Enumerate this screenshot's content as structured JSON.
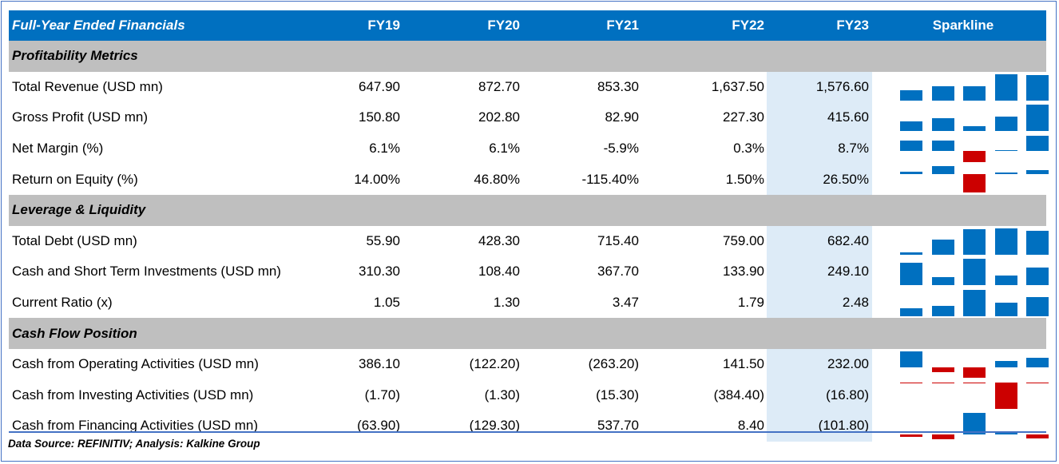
{
  "header": {
    "title": "Full-Year Ended Financials",
    "years": [
      "FY19",
      "FY20",
      "FY21",
      "FY22",
      "FY23"
    ],
    "sparkline_label": "Sparkline"
  },
  "colors": {
    "header": "#0070c0",
    "section": "#bfbfbf",
    "highlight": "#ddebf7",
    "positive": "#0070c0",
    "negative": "#cc0000"
  },
  "sections": [
    {
      "title": "Profitability Metrics",
      "rows": [
        {
          "label": "Total Revenue (USD mn)",
          "values": [
            "647.90",
            "872.70",
            "853.30",
            "1,637.50",
            "1,576.60"
          ],
          "series": [
            647.9,
            872.7,
            853.3,
            1637.5,
            1576.6
          ]
        },
        {
          "label": "Gross Profit (USD mn)",
          "values": [
            "150.80",
            "202.80",
            "82.90",
            "227.30",
            "415.60"
          ],
          "series": [
            150.8,
            202.8,
            82.9,
            227.3,
            415.6
          ]
        },
        {
          "label": "Net Margin (%)",
          "values": [
            "6.1%",
            "6.1%",
            "-5.9%",
            "0.3%",
            "8.7%"
          ],
          "series": [
            6.1,
            6.1,
            -5.9,
            0.3,
            8.7
          ]
        },
        {
          "label": "Return on Equity (%)",
          "values": [
            "14.00%",
            "46.80%",
            "-115.40%",
            "1.50%",
            "26.50%"
          ],
          "series": [
            14.0,
            46.8,
            -115.4,
            1.5,
            26.5
          ]
        }
      ]
    },
    {
      "title": "Leverage & Liquidity",
      "rows": [
        {
          "label": "Total Debt (USD mn)",
          "values": [
            "55.90",
            "428.30",
            "715.40",
            "759.00",
            "682.40"
          ],
          "series": [
            55.9,
            428.3,
            715.4,
            759.0,
            682.4
          ]
        },
        {
          "label": "Cash and Short Term Investments (USD mn)",
          "values": [
            "310.30",
            "108.40",
            "367.70",
            "133.90",
            "249.10"
          ],
          "series": [
            310.3,
            108.4,
            367.7,
            133.9,
            249.1
          ]
        },
        {
          "label": "Current Ratio (x)",
          "values": [
            "1.05",
            "1.30",
            "3.47",
            "1.79",
            "2.48"
          ],
          "series": [
            1.05,
            1.3,
            3.47,
            1.79,
            2.48
          ]
        }
      ]
    },
    {
      "title": "Cash Flow Position",
      "rows": [
        {
          "label": "Cash from Operating Activities (USD mn)",
          "values": [
            "386.10",
            "(122.20)",
            "(263.20)",
            "141.50",
            "232.00"
          ],
          "series": [
            386.1,
            -122.2,
            -263.2,
            141.5,
            232.0
          ]
        },
        {
          "label": "Cash from Investing Activities (USD mn)",
          "values": [
            "(1.70)",
            "(1.30)",
            "(15.30)",
            "(384.40)",
            "(16.80)"
          ],
          "series": [
            -1.7,
            -1.3,
            -15.3,
            -384.4,
            -16.8
          ]
        },
        {
          "label": "Cash from Financing Activities (USD mn)",
          "values": [
            "(63.90)",
            "(129.30)",
            "537.70",
            "8.40",
            "(101.80)"
          ],
          "series": [
            -63.9,
            -129.3,
            537.7,
            8.4,
            -101.8
          ]
        }
      ]
    }
  ],
  "footer": "Data Source: REFINITIV; Analysis: Kalkine Group"
}
